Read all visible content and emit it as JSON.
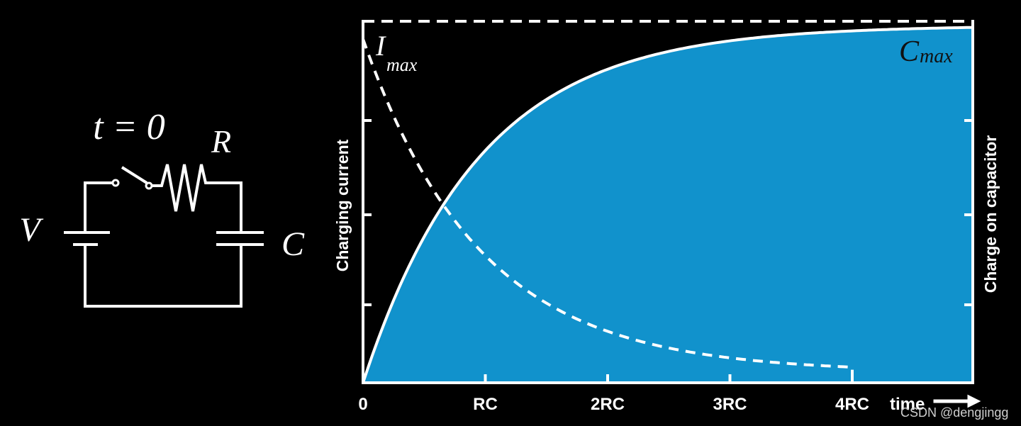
{
  "circuit": {
    "switch_label": "t = 0",
    "resistor_label": "R",
    "voltage_label": "V",
    "capacitor_label": "C"
  },
  "graph": {
    "current_label": {
      "symbol": "I",
      "subscript": "max"
    },
    "charge_label": {
      "symbol": "C",
      "subscript": "max"
    },
    "left_axis_title": "Charging current",
    "right_axis_title": "Charge on capacitor",
    "x_ticks": [
      "0",
      "RC",
      "2RC",
      "3RC",
      "4RC"
    ],
    "x_axis_title": "time"
  },
  "watermark": "CSDN @dengjingg"
}
